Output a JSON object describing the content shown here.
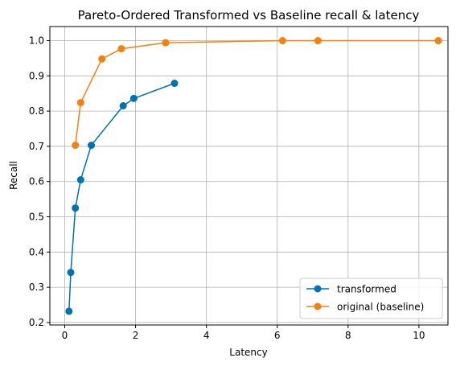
{
  "colors": {
    "transformed": "#0072B2",
    "original": "#F77F0E",
    "grid": "#b0b0b0",
    "axis": "#000000",
    "background": "#ffffff",
    "legend_border": "#cccccc"
  },
  "chart_data": {
    "type": "line",
    "title": "Pareto-Ordered Transformed vs Baseline recall & latency",
    "xlabel": "Latency",
    "ylabel": "Recall",
    "xlim": [
      -0.42,
      10.82
    ],
    "ylim": [
      0.193,
      1.04
    ],
    "xticks": [
      0,
      2,
      4,
      6,
      8,
      10
    ],
    "yticks": [
      0.2,
      0.3,
      0.4,
      0.5,
      0.6,
      0.7,
      0.8,
      0.9,
      1.0
    ],
    "xtick_labels": [
      "0",
      "2",
      "4",
      "6",
      "8",
      "10"
    ],
    "ytick_labels": [
      "0.2",
      "0.3",
      "0.4",
      "0.5",
      "0.6",
      "0.7",
      "0.8",
      "0.9",
      "1.0"
    ],
    "grid": true,
    "legend_position": "lower-right",
    "series": [
      {
        "name": "transformed",
        "color": "#0072B2",
        "marker": "circle",
        "points": [
          {
            "x": 0.12,
            "y": 0.232
          },
          {
            "x": 0.17,
            "y": 0.342
          },
          {
            "x": 0.3,
            "y": 0.525
          },
          {
            "x": 0.45,
            "y": 0.605
          },
          {
            "x": 0.75,
            "y": 0.703
          },
          {
            "x": 1.65,
            "y": 0.815
          },
          {
            "x": 1.95,
            "y": 0.836
          },
          {
            "x": 3.1,
            "y": 0.879
          }
        ]
      },
      {
        "name": "original (baseline)",
        "color": "#F77F0E",
        "marker": "circle",
        "points": [
          {
            "x": 0.3,
            "y": 0.703
          },
          {
            "x": 0.45,
            "y": 0.824
          },
          {
            "x": 1.05,
            "y": 0.948
          },
          {
            "x": 1.6,
            "y": 0.977
          },
          {
            "x": 2.85,
            "y": 0.994
          },
          {
            "x": 6.15,
            "y": 1.0
          },
          {
            "x": 7.15,
            "y": 1.0
          },
          {
            "x": 10.55,
            "y": 1.0
          }
        ]
      }
    ]
  }
}
